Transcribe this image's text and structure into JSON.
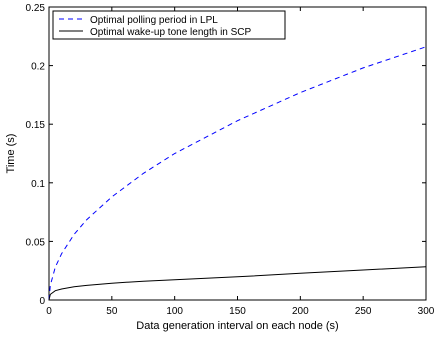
{
  "chart_data": {
    "type": "line",
    "title": "",
    "xlabel": "Data generation interval on each node (s)",
    "ylabel": "Time (s)",
    "xlim": [
      0,
      300
    ],
    "ylim": [
      0,
      0.25
    ],
    "xticks": [
      0,
      50,
      100,
      150,
      200,
      250,
      300
    ],
    "yticks": [
      0,
      0.05,
      0.1,
      0.15,
      0.2,
      0.25
    ],
    "xtick_labels": [
      "0",
      "50",
      "100",
      "150",
      "200",
      "250",
      "300"
    ],
    "ytick_labels": [
      "0",
      "0.05",
      "0.1",
      "0.15",
      "0.2",
      "0.25"
    ],
    "grid": false,
    "legend_position": "top-left",
    "series": [
      {
        "name": "Optimal polling period in LPL",
        "color": "#0000ff",
        "style": "dashed",
        "x": [
          0,
          1,
          5,
          10,
          20,
          30,
          50,
          75,
          100,
          150,
          200,
          250,
          300
        ],
        "y": [
          0,
          0.0125,
          0.028,
          0.0395,
          0.056,
          0.0685,
          0.088,
          0.108,
          0.125,
          0.153,
          0.177,
          0.198,
          0.216
        ]
      },
      {
        "name": "Optimal wake-up tone length in SCP",
        "color": "#000000",
        "style": "solid",
        "x": [
          0,
          1,
          5,
          10,
          20,
          30,
          50,
          75,
          100,
          150,
          200,
          250,
          300
        ],
        "y": [
          0,
          0.0048,
          0.0079,
          0.0094,
          0.0113,
          0.0125,
          0.0143,
          0.016,
          0.0173,
          0.0198,
          0.0228,
          0.0256,
          0.0283
        ]
      }
    ]
  }
}
